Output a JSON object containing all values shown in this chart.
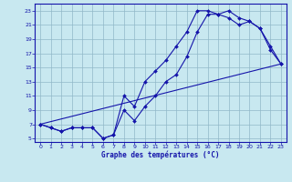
{
  "xlabel": "Graphe des températures (°C)",
  "bg_color": "#c8e8f0",
  "line_color": "#1414aa",
  "grid_color": "#90b8c8",
  "xlim": [
    -0.5,
    23.5
  ],
  "ylim": [
    4.5,
    24.0
  ],
  "xticks": [
    0,
    1,
    2,
    3,
    4,
    5,
    6,
    7,
    8,
    9,
    10,
    11,
    12,
    13,
    14,
    15,
    16,
    17,
    18,
    19,
    20,
    21,
    22,
    23
  ],
  "yticks": [
    5,
    7,
    9,
    11,
    13,
    15,
    17,
    19,
    21,
    23
  ],
  "curve1_x": [
    0,
    1,
    2,
    3,
    4,
    5,
    6,
    7,
    8,
    9,
    10,
    11,
    12,
    13,
    14,
    15,
    16,
    17,
    18,
    19,
    20,
    21,
    22,
    23
  ],
  "curve1_y": [
    7.0,
    6.5,
    6.0,
    6.5,
    6.5,
    6.5,
    5.0,
    5.5,
    11.0,
    9.5,
    13.0,
    14.5,
    16.0,
    18.0,
    20.0,
    23.0,
    23.0,
    22.5,
    22.0,
    21.0,
    21.5,
    20.5,
    18.0,
    15.5
  ],
  "curve2_x": [
    0,
    1,
    2,
    3,
    4,
    5,
    6,
    7,
    8,
    9,
    10,
    11,
    12,
    13,
    14,
    15,
    16,
    17,
    18,
    19,
    20,
    21,
    22,
    23
  ],
  "curve2_y": [
    7.0,
    6.5,
    6.0,
    6.5,
    6.5,
    6.5,
    5.0,
    5.5,
    9.0,
    7.5,
    9.5,
    11.0,
    13.0,
    14.0,
    16.5,
    20.0,
    22.5,
    22.5,
    23.0,
    22.0,
    21.5,
    20.5,
    17.5,
    15.5
  ],
  "line3_x": [
    0,
    23
  ],
  "line3_y": [
    7.0,
    15.5
  ]
}
